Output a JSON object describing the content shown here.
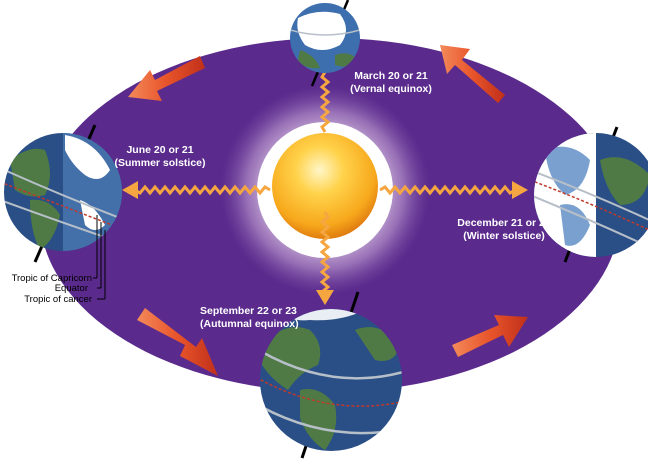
{
  "labels": {
    "vernal": {
      "date": "March 20 or 21",
      "name": "(Vernal equinox)"
    },
    "summer": {
      "date": "June 20 or 21",
      "name": "(Summer solstice)"
    },
    "winter": {
      "date": "December 21 or 22",
      "name": "(Winter solstice)"
    },
    "autumnal": {
      "date": "September 22 or 23",
      "name": "(Autumnal equinox)"
    }
  },
  "legend": {
    "capricorn": "Tropic of Capricorn",
    "equator": "Equator",
    "cancer": "Tropic of cancer"
  },
  "colors": {
    "orbit": "#5a2a8c",
    "sun": "#f7a81c",
    "arrow": "#e8542a",
    "ray": "#f5a640",
    "ocean": "#3d6fae",
    "land": "#4f7a45"
  }
}
